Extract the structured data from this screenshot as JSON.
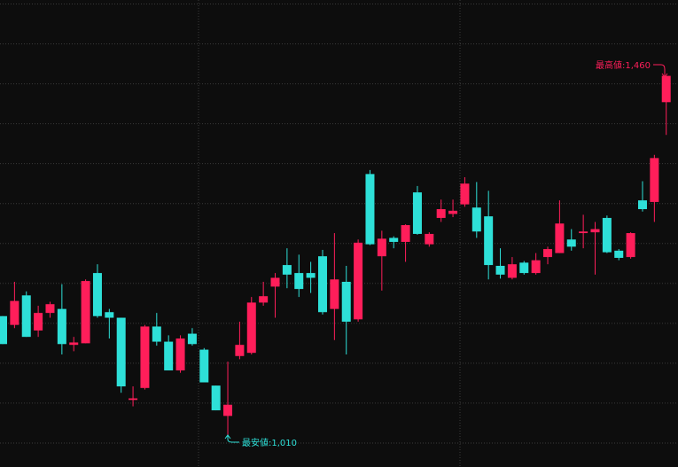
{
  "chart_data": {
    "type": "candlestick",
    "series": {
      "open": [
        1159,
        1148,
        1185,
        1141,
        1163,
        1168,
        1123,
        1125,
        1213,
        1164,
        1157,
        1054,
        1069,
        1146,
        1127,
        1091,
        1137,
        1117,
        1072,
        1034,
        1109,
        1113,
        1176,
        1196,
        1223,
        1213,
        1213,
        1234,
        1168,
        1202,
        1155,
        1337,
        1234,
        1257,
        1252,
        1314,
        1249,
        1282,
        1287,
        1299,
        1295,
        1284,
        1222,
        1207,
        1226,
        1213,
        1233,
        1238,
        1255,
        1263,
        1264,
        1282,
        1241,
        1233,
        1304,
        1302,
        1427
      ],
      "high": [
        1159,
        1202,
        1190,
        1172,
        1177,
        1199,
        1133,
        1205,
        1224,
        1168,
        1157,
        1071,
        1148,
        1163,
        1135,
        1135,
        1144,
        1119,
        1072,
        1102,
        1152,
        1183,
        1202,
        1213,
        1244,
        1236,
        1227,
        1242,
        1263,
        1222,
        1255,
        1342,
        1266,
        1259,
        1274,
        1322,
        1264,
        1305,
        1305,
        1333,
        1327,
        1316,
        1244,
        1233,
        1228,
        1238,
        1246,
        1304,
        1268,
        1286,
        1277,
        1285,
        1243,
        1264,
        1328,
        1361,
        1460
      ],
      "low": [
        1124,
        1144,
        1133,
        1133,
        1157,
        1111,
        1115,
        1125,
        1157,
        1131,
        1063,
        1046,
        1067,
        1122,
        1091,
        1088,
        1122,
        1076,
        1041,
        1010,
        1105,
        1111,
        1172,
        1157,
        1194,
        1183,
        1188,
        1161,
        1129,
        1111,
        1152,
        1248,
        1191,
        1244,
        1227,
        1261,
        1246,
        1277,
        1283,
        1296,
        1257,
        1205,
        1206,
        1205,
        1211,
        1211,
        1224,
        1238,
        1241,
        1244,
        1211,
        1238,
        1229,
        1231,
        1290,
        1277,
        1386
      ],
      "close": [
        1124,
        1178,
        1133,
        1163,
        1174,
        1124,
        1126,
        1203,
        1159,
        1157,
        1071,
        1056,
        1146,
        1127,
        1091,
        1131,
        1124,
        1076,
        1041,
        1048,
        1123,
        1176,
        1184,
        1207,
        1211,
        1193,
        1207,
        1164,
        1205,
        1152,
        1251,
        1249,
        1256,
        1252,
        1273,
        1262,
        1262,
        1293,
        1291,
        1325,
        1265,
        1223,
        1211,
        1224,
        1213,
        1229,
        1243,
        1275,
        1246,
        1265,
        1268,
        1239,
        1232,
        1263,
        1293,
        1357,
        1460
      ]
    },
    "up_color": "#ff1e5a",
    "down_color": "#2ee0d8",
    "ylim": [
      970,
      1555
    ],
    "yticks": [
      1000,
      1050,
      1100,
      1150,
      1200,
      1250,
      1300,
      1350,
      1400,
      1450,
      1500,
      1550
    ],
    "grid": true,
    "annotations": [
      {
        "text": "最高値:1,460",
        "color": "#ff1e5a"
      },
      {
        "text": "最安値:1,010",
        "color": "#2ee0d8"
      }
    ]
  }
}
